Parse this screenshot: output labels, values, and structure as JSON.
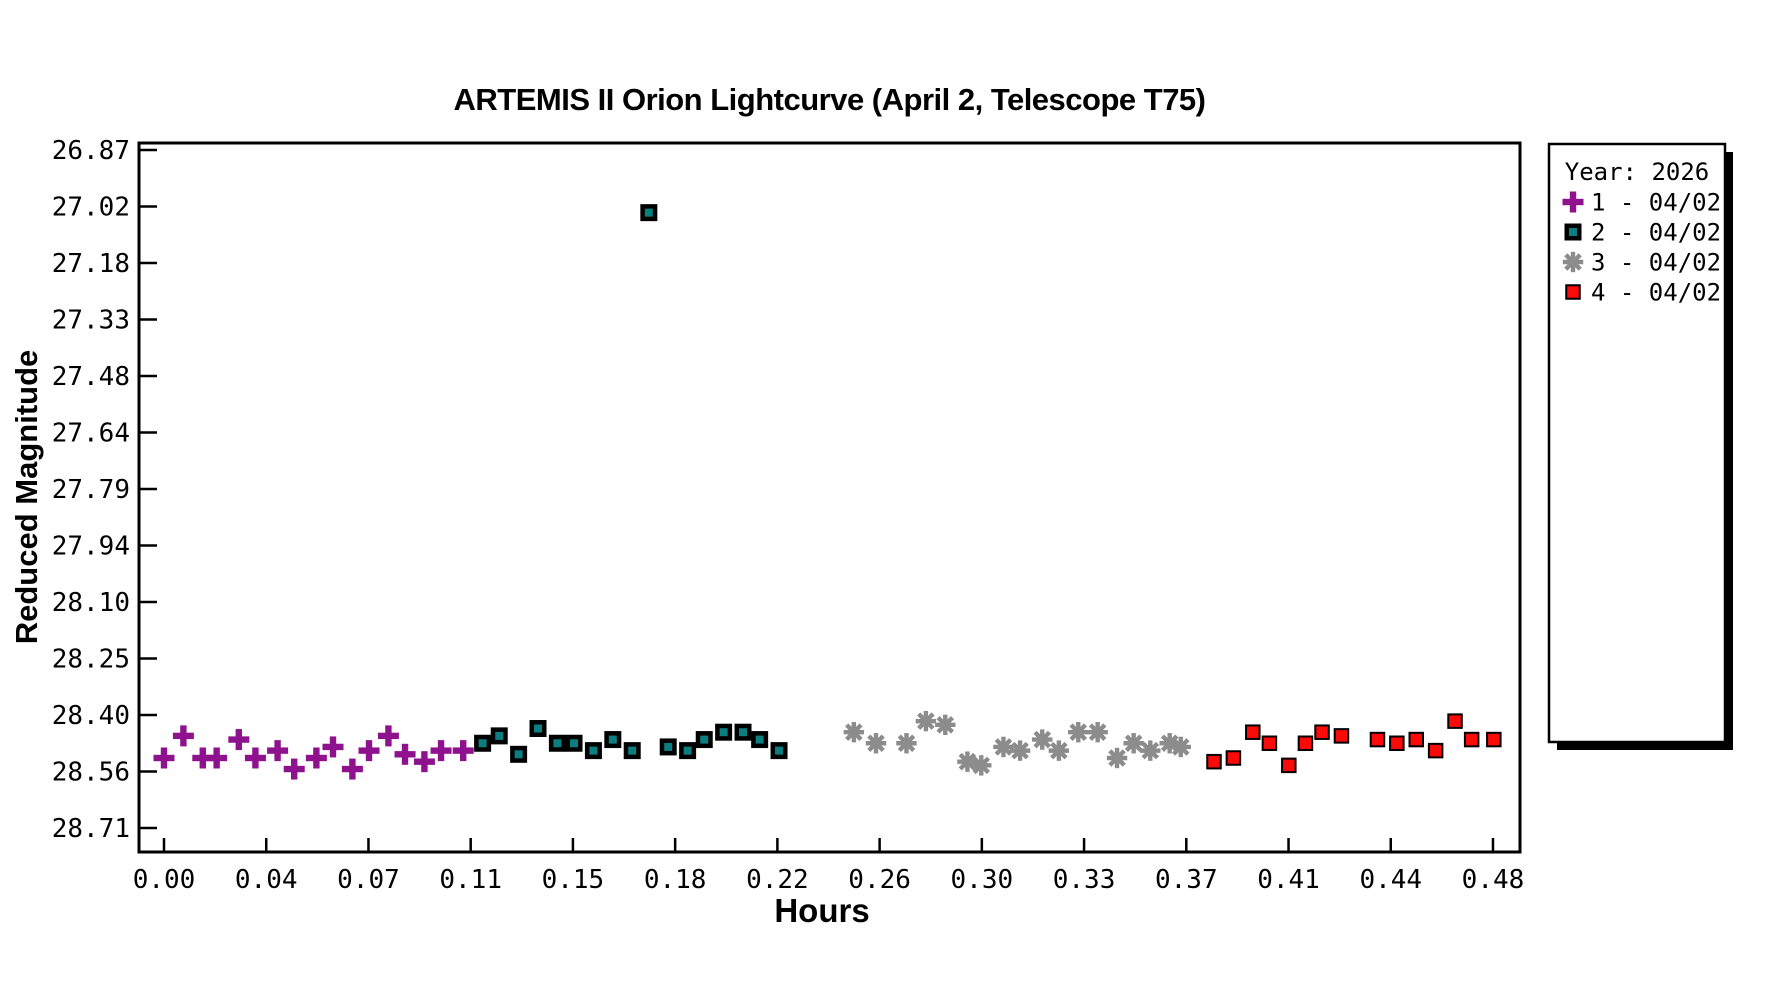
{
  "page": {
    "background": "#ffffff"
  },
  "chart_data": {
    "type": "scatter",
    "title": "ARTEMIS II Orion Lightcurve (April 2, Telescope T75)",
    "xlabel": "Hours",
    "ylabel": "Reduced Magnitude",
    "x_axis": {
      "first_tick_value": 0.0,
      "tick_interval": 0.0369,
      "tick_labels": [
        "0.00",
        "0.04",
        "0.07",
        "0.11",
        "0.15",
        "0.18",
        "0.22",
        "0.26",
        "0.30",
        "0.33",
        "0.37",
        "0.41",
        "0.44",
        "0.48"
      ]
    },
    "y_axis": {
      "first_tick_value": 26.87,
      "tick_interval": 0.153333,
      "tick_labels": [
        "26.87",
        "27.02",
        "27.18",
        "27.33",
        "27.48",
        "27.64",
        "27.79",
        "27.94",
        "28.10",
        "28.25",
        "28.40",
        "28.56",
        "28.71"
      ],
      "note": "magnitude values increase downward"
    },
    "legend": {
      "title": "Year: 2026",
      "position": "outside-right",
      "entries": [
        {
          "label": "1 - 04/02",
          "marker": "plus",
          "color": "#8E128E"
        },
        {
          "label": "2 - 04/02",
          "marker": "square",
          "color": "#0B7F80",
          "border": "#000000"
        },
        {
          "label": "3 - 04/02",
          "marker": "asterisk",
          "color": "#8C8C8C"
        },
        {
          "label": "4 - 04/02",
          "marker": "square",
          "color": "#FB0A0A",
          "border": "#000000"
        }
      ]
    },
    "frame_color": "#000000",
    "series": [
      {
        "name": "1 - 04/02",
        "marker": "plus",
        "color": "#8E128E",
        "points": [
          [
            0.0,
            28.52
          ],
          [
            0.007,
            28.46
          ],
          [
            0.014,
            28.52
          ],
          [
            0.019,
            28.52
          ],
          [
            0.027,
            28.47
          ],
          [
            0.033,
            28.52
          ],
          [
            0.041,
            28.5
          ],
          [
            0.047,
            28.55
          ],
          [
            0.055,
            28.52
          ],
          [
            0.061,
            28.49
          ],
          [
            0.068,
            28.55
          ],
          [
            0.074,
            28.5
          ],
          [
            0.081,
            28.46
          ],
          [
            0.087,
            28.51
          ],
          [
            0.094,
            28.53
          ],
          [
            0.1,
            28.5
          ],
          [
            0.108,
            28.5
          ]
        ]
      },
      {
        "name": "2 - 04/02",
        "marker": "square",
        "color": "#0B7F80",
        "border": "#000000",
        "points": [
          [
            0.115,
            28.48
          ],
          [
            0.121,
            28.46
          ],
          [
            0.128,
            28.51
          ],
          [
            0.135,
            28.44
          ],
          [
            0.142,
            28.48
          ],
          [
            0.148,
            28.48
          ],
          [
            0.155,
            28.5
          ],
          [
            0.162,
            28.47
          ],
          [
            0.169,
            28.5
          ],
          [
            0.175,
            27.04
          ],
          [
            0.182,
            28.49
          ],
          [
            0.189,
            28.5
          ],
          [
            0.195,
            28.47
          ],
          [
            0.202,
            28.45
          ],
          [
            0.209,
            28.45
          ],
          [
            0.215,
            28.47
          ],
          [
            0.222,
            28.5
          ]
        ]
      },
      {
        "name": "3 - 04/02",
        "marker": "asterisk",
        "color": "#8C8C8C",
        "points": [
          [
            0.249,
            28.45
          ],
          [
            0.257,
            28.48
          ],
          [
            0.268,
            28.48
          ],
          [
            0.275,
            28.42
          ],
          [
            0.282,
            28.43
          ],
          [
            0.29,
            28.53
          ],
          [
            0.295,
            28.54
          ],
          [
            0.303,
            28.49
          ],
          [
            0.309,
            28.5
          ],
          [
            0.317,
            28.47
          ],
          [
            0.323,
            28.5
          ],
          [
            0.33,
            28.45
          ],
          [
            0.337,
            28.45
          ],
          [
            0.344,
            28.52
          ],
          [
            0.35,
            28.48
          ],
          [
            0.356,
            28.5
          ],
          [
            0.363,
            28.48
          ],
          [
            0.367,
            28.49
          ]
        ]
      },
      {
        "name": "4 - 04/02",
        "marker": "square",
        "color": "#FB0A0A",
        "border": "#000000",
        "points": [
          [
            0.379,
            28.53
          ],
          [
            0.386,
            28.52
          ],
          [
            0.393,
            28.45
          ],
          [
            0.399,
            28.48
          ],
          [
            0.406,
            28.54
          ],
          [
            0.412,
            28.48
          ],
          [
            0.418,
            28.45
          ],
          [
            0.425,
            28.46
          ],
          [
            0.438,
            28.47
          ],
          [
            0.445,
            28.48
          ],
          [
            0.452,
            28.47
          ],
          [
            0.459,
            28.5
          ],
          [
            0.466,
            28.42
          ],
          [
            0.472,
            28.47
          ],
          [
            0.48,
            28.47
          ]
        ]
      }
    ]
  }
}
